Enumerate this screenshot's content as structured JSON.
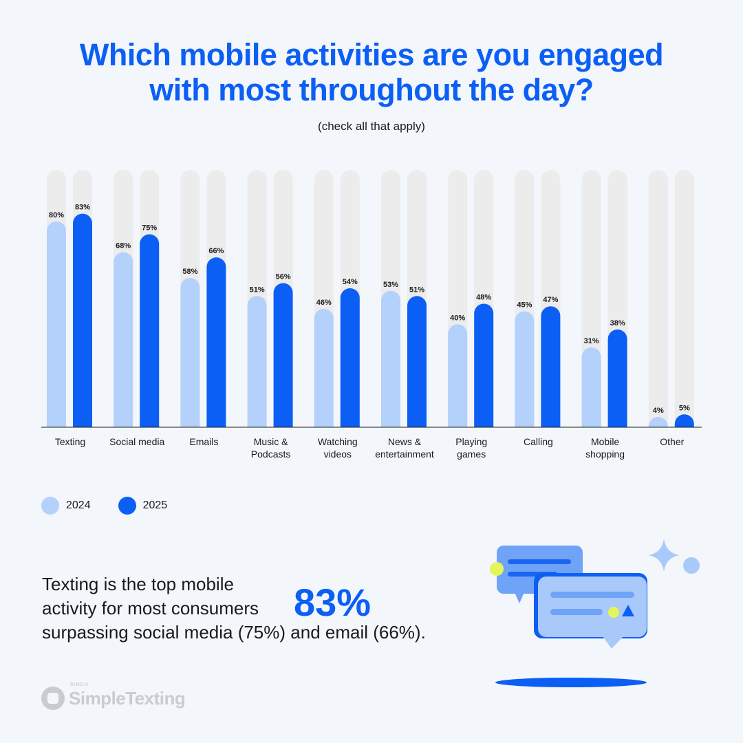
{
  "title_line1": "Which mobile activities are you engaged",
  "title_line2": "with most throughout the day?",
  "subtitle": "(check all that apply)",
  "colors": {
    "series_2024": "#b3d1fb",
    "series_2025": "#0b5ff5",
    "track": "#ececec",
    "title": "#0b5ff5"
  },
  "chart_data": {
    "type": "bar",
    "title": "Which mobile activities are you engaged with most throughout the day?",
    "subtitle": "(check all that apply)",
    "categories": [
      [
        "Texting"
      ],
      [
        "Social media"
      ],
      [
        "Emails"
      ],
      [
        "Music &",
        "Podcasts"
      ],
      [
        "Watching",
        "videos"
      ],
      [
        "News &",
        "entertainment"
      ],
      [
        "Playing",
        "games"
      ],
      [
        "Calling"
      ],
      [
        "Mobile",
        "shopping"
      ],
      [
        "Other"
      ]
    ],
    "series": [
      {
        "name": "2024",
        "values": [
          80,
          68,
          58,
          51,
          46,
          53,
          40,
          45,
          31,
          4
        ],
        "color": "#b3d1fb"
      },
      {
        "name": "2025",
        "values": [
          83,
          75,
          66,
          56,
          54,
          51,
          48,
          47,
          38,
          5
        ],
        "color": "#0b5ff5"
      }
    ],
    "value_suffix": "%",
    "ylim": [
      0,
      100
    ],
    "grid": false,
    "legend_position": "bottom-left"
  },
  "legend": [
    {
      "label": "2024",
      "color": "#b3d1fb"
    },
    {
      "label": "2025",
      "color": "#0b5ff5"
    }
  ],
  "callout": {
    "line1": "Texting is the top mobile",
    "line2": "activity for most consumers",
    "line3": "surpassing social media (75%) and email (66%).",
    "stat": "83%"
  },
  "logo": {
    "small": "SINCH",
    "name": "SimpleTexting"
  }
}
